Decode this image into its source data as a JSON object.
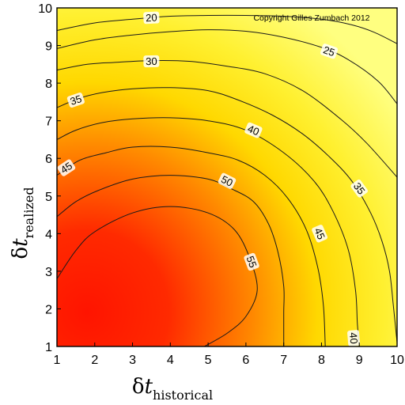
{
  "chart_data": {
    "type": "contour",
    "watermark": "Copyright Gilles Zumbach 2012",
    "xlabel": {
      "symbol": "δ",
      "var": "t",
      "subscript": "historical"
    },
    "ylabel": {
      "symbol": "δ",
      "var": "t",
      "subscript": "realized"
    },
    "xlim": [
      1,
      10
    ],
    "ylim": [
      1,
      10
    ],
    "xticks": [
      "1",
      "2",
      "3",
      "4",
      "5",
      "6",
      "7",
      "8",
      "9",
      "10"
    ],
    "yticks": [
      "1",
      "2",
      "3",
      "4",
      "5",
      "6",
      "7",
      "8",
      "9",
      "10"
    ],
    "grid": false,
    "colormap": {
      "low": "#ffff80",
      "mid": "#ffd800",
      "high": "#ff1400"
    },
    "contours": [
      {
        "level": 20,
        "label": "20",
        "points": [
          [
            1.0,
            9.4
          ],
          [
            2.0,
            9.6
          ],
          [
            3.0,
            9.7
          ],
          [
            4.0,
            9.78
          ],
          [
            5.0,
            9.8
          ],
          [
            6.0,
            9.8
          ],
          [
            7.0,
            9.78
          ],
          [
            8.0,
            9.7
          ],
          [
            8.8,
            9.55
          ],
          [
            9.4,
            9.35
          ],
          [
            10.0,
            9.05
          ]
        ],
        "labels_at": [
          [
            3.5,
            9.74
          ]
        ]
      },
      {
        "level": 25,
        "label": "25",
        "points": [
          [
            1.0,
            8.92
          ],
          [
            2.0,
            9.15
          ],
          [
            3.0,
            9.28
          ],
          [
            4.0,
            9.37
          ],
          [
            5.0,
            9.42
          ],
          [
            6.0,
            9.38
          ],
          [
            7.0,
            9.22
          ],
          [
            8.0,
            8.95
          ],
          [
            8.7,
            8.63
          ],
          [
            9.5,
            8.05
          ],
          [
            10.0,
            7.45
          ]
        ],
        "labels_at": [
          [
            8.2,
            8.85
          ]
        ]
      },
      {
        "level": 30,
        "label": "30",
        "points": [
          [
            1.0,
            8.35
          ],
          [
            1.8,
            8.5
          ],
          [
            2.5,
            8.55
          ],
          [
            3.5,
            8.6
          ],
          [
            4.5,
            8.58
          ],
          [
            5.5,
            8.45
          ],
          [
            6.5,
            8.25
          ],
          [
            7.5,
            7.8
          ],
          [
            8.5,
            7.05
          ],
          [
            9.2,
            6.4
          ],
          [
            10.0,
            5.5
          ]
        ],
        "labels_at": [
          [
            3.5,
            8.58
          ]
        ]
      },
      {
        "level": 35,
        "label": "35",
        "points": [
          [
            1.0,
            7.35
          ],
          [
            1.6,
            7.6
          ],
          [
            2.2,
            7.75
          ],
          [
            3.0,
            7.85
          ],
          [
            4.0,
            7.88
          ],
          [
            5.0,
            7.8
          ],
          [
            5.8,
            7.55
          ],
          [
            6.7,
            7.15
          ],
          [
            7.5,
            6.65
          ],
          [
            8.2,
            6.05
          ],
          [
            8.8,
            5.4
          ],
          [
            9.3,
            4.55
          ],
          [
            9.6,
            3.8
          ],
          [
            9.8,
            3.0
          ],
          [
            9.9,
            2.1
          ],
          [
            10.0,
            1.1
          ]
        ],
        "labels_at": [
          [
            1.5,
            7.55
          ],
          [
            9.0,
            5.2
          ]
        ]
      },
      {
        "level": 40,
        "label": "40",
        "points": [
          [
            1.0,
            6.5
          ],
          [
            1.5,
            6.75
          ],
          [
            2.2,
            6.95
          ],
          [
            3.0,
            7.05
          ],
          [
            4.0,
            7.08
          ],
          [
            5.0,
            7.0
          ],
          [
            6.0,
            6.75
          ],
          [
            7.0,
            6.15
          ],
          [
            7.8,
            5.4
          ],
          [
            8.3,
            4.6
          ],
          [
            8.7,
            3.6
          ],
          [
            8.9,
            2.5
          ],
          [
            8.95,
            1.6
          ],
          [
            9.0,
            1.0
          ]
        ],
        "labels_at": [
          [
            6.2,
            6.75
          ],
          [
            8.85,
            1.22
          ]
        ]
      },
      {
        "level": 45,
        "label": "45",
        "points": [
          [
            1.0,
            5.55
          ],
          [
            1.6,
            5.95
          ],
          [
            2.3,
            6.15
          ],
          [
            3.0,
            6.3
          ],
          [
            4.0,
            6.3
          ],
          [
            5.0,
            6.15
          ],
          [
            5.8,
            5.95
          ],
          [
            6.5,
            5.55
          ],
          [
            7.1,
            4.95
          ],
          [
            7.6,
            4.1
          ],
          [
            7.9,
            3.1
          ],
          [
            8.05,
            2.1
          ],
          [
            8.1,
            1.0
          ]
        ],
        "labels_at": [
          [
            1.25,
            5.75
          ],
          [
            7.95,
            4.0
          ]
        ]
      },
      {
        "level": 50,
        "label": "50",
        "points": [
          [
            1.0,
            4.45
          ],
          [
            1.5,
            4.85
          ],
          [
            2.1,
            5.15
          ],
          [
            3.0,
            5.45
          ],
          [
            4.0,
            5.55
          ],
          [
            5.0,
            5.45
          ],
          [
            5.6,
            5.2
          ],
          [
            6.2,
            4.85
          ],
          [
            6.6,
            4.25
          ],
          [
            6.85,
            3.5
          ],
          [
            7.0,
            2.6
          ],
          [
            7.0,
            1.9
          ],
          [
            7.0,
            1.0
          ]
        ],
        "labels_at": [
          [
            5.5,
            5.4
          ]
        ]
      },
      {
        "level": 55,
        "label": "55",
        "points": [
          [
            1.0,
            2.8
          ],
          [
            1.5,
            3.55
          ],
          [
            2.0,
            4.05
          ],
          [
            3.0,
            4.55
          ],
          [
            4.0,
            4.72
          ],
          [
            5.0,
            4.55
          ],
          [
            5.7,
            4.1
          ],
          [
            6.1,
            3.35
          ],
          [
            6.3,
            2.5
          ],
          [
            6.0,
            1.8
          ],
          [
            5.5,
            1.35
          ],
          [
            4.9,
            1.0
          ]
        ],
        "labels_at": [
          [
            6.15,
            3.25
          ]
        ]
      }
    ]
  }
}
